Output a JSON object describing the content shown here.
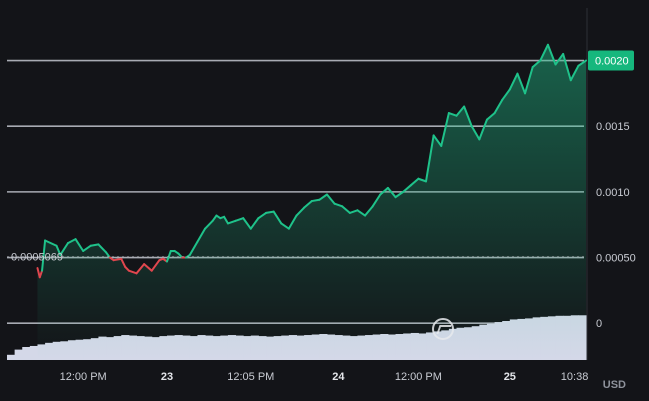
{
  "chart_data": {
    "type": "area",
    "baseline": "0.0005069",
    "current_price": "0.0020",
    "currency": "USD",
    "y_ticks": [
      "0.0020",
      "0.0015",
      "0.0010",
      "0.00050",
      "0"
    ],
    "y_tick_values": [
      0.002,
      0.0015,
      0.001,
      0.0005,
      0
    ],
    "ylim": [
      -0.00028,
      0.0024
    ],
    "xlim": [
      0,
      76
    ],
    "x_ticks": [
      {
        "label": "12:00 PM",
        "x": 10,
        "bold": false
      },
      {
        "label": "23",
        "x": 21,
        "bold": true
      },
      {
        "label": "12:05 PM",
        "x": 32,
        "bold": false
      },
      {
        "label": "24",
        "x": 43.5,
        "bold": true
      },
      {
        "label": "12:00 PM",
        "x": 54,
        "bold": false
      },
      {
        "label": "25",
        "x": 66,
        "bold": true
      },
      {
        "label": "10:38",
        "x": 74.5,
        "bold": false
      }
    ],
    "series": [
      {
        "x": [
          4.0,
          4.3,
          4.6,
          5.0,
          6.5,
          7.0,
          8.0,
          9.0,
          10.0,
          11.0,
          12.0,
          13.0,
          13.5,
          14.0,
          15.0,
          15.5,
          16.0,
          17.0,
          18.0,
          19.0,
          20.0,
          20.5,
          21.0,
          21.5,
          22.0,
          22.5,
          23.0,
          23.5,
          24.0,
          25.0,
          26.0,
          27.0,
          27.5,
          28.0,
          28.5,
          29.0,
          30.0,
          31.0,
          32.0,
          33.0,
          34.0,
          35.0,
          36.0,
          37.0,
          38.0,
          39.0,
          40.0,
          41.0,
          42.0,
          43.0,
          44.0,
          45.0,
          46.0,
          47.0,
          48.0,
          49.0,
          50.0,
          51.0,
          52.0,
          53.0,
          54.0,
          55.0,
          56.0,
          57.0,
          58.0,
          59.0,
          60.0,
          61.0,
          62.0,
          63.0,
          64.0,
          65.0,
          66.0,
          67.0,
          68.0,
          69.0,
          70.0,
          71.0,
          72.0,
          73.0,
          74.0,
          75.0,
          76.0
        ],
        "y": [
          0.00042,
          0.00035,
          0.0004,
          0.00063,
          0.00059,
          0.00052,
          0.00061,
          0.00064,
          0.00055,
          0.00059,
          0.0006,
          0.00054,
          0.0005,
          0.00048,
          0.00049,
          0.00043,
          0.0004,
          0.00038,
          0.00045,
          0.0004,
          0.00048,
          0.00049,
          0.00047,
          0.00055,
          0.00055,
          0.00053,
          0.0005,
          0.0005,
          0.00052,
          0.00062,
          0.00072,
          0.00078,
          0.00082,
          0.0008,
          0.00081,
          0.00076,
          0.00078,
          0.0008,
          0.00072,
          0.0008,
          0.00084,
          0.00085,
          0.00076,
          0.00072,
          0.00082,
          0.00088,
          0.00093,
          0.00094,
          0.00098,
          0.00091,
          0.00089,
          0.00084,
          0.00086,
          0.00082,
          0.00089,
          0.00098,
          0.00103,
          0.00096,
          0.001,
          0.00105,
          0.0011,
          0.00108,
          0.00143,
          0.00135,
          0.0016,
          0.00158,
          0.00165,
          0.0015,
          0.0014,
          0.00155,
          0.0016,
          0.0017,
          0.00178,
          0.0019,
          0.00175,
          0.00195,
          0.002,
          0.00212,
          0.00197,
          0.00205,
          0.00185,
          0.00196,
          0.002
        ]
      }
    ],
    "volume": [
      0.1,
      0.2,
      0.25,
      0.27,
      0.3,
      0.33,
      0.35,
      0.36,
      0.38,
      0.39,
      0.4,
      0.42,
      0.45,
      0.44,
      0.46,
      0.48,
      0.47,
      0.46,
      0.45,
      0.44,
      0.46,
      0.47,
      0.48,
      0.47,
      0.46,
      0.48,
      0.47,
      0.46,
      0.47,
      0.48,
      0.47,
      0.46,
      0.47,
      0.46,
      0.45,
      0.46,
      0.47,
      0.48,
      0.47,
      0.48,
      0.49,
      0.5,
      0.49,
      0.48,
      0.47,
      0.46,
      0.47,
      0.48,
      0.49,
      0.5,
      0.49,
      0.5,
      0.51,
      0.52,
      0.51,
      0.53,
      0.55,
      0.57,
      0.6,
      0.62,
      0.63,
      0.65,
      0.68,
      0.7,
      0.73,
      0.75,
      0.78,
      0.79,
      0.8,
      0.82,
      0.83,
      0.84,
      0.85,
      0.85,
      0.86,
      0.86
    ]
  },
  "colors": {
    "up": "#1fc28a",
    "down": "#e0464e",
    "grid": "#b9bcc4",
    "volume": "#d4d8e8",
    "tag": "#16b77d"
  },
  "icons": {
    "watermark": "coingecko-logo-icon"
  }
}
